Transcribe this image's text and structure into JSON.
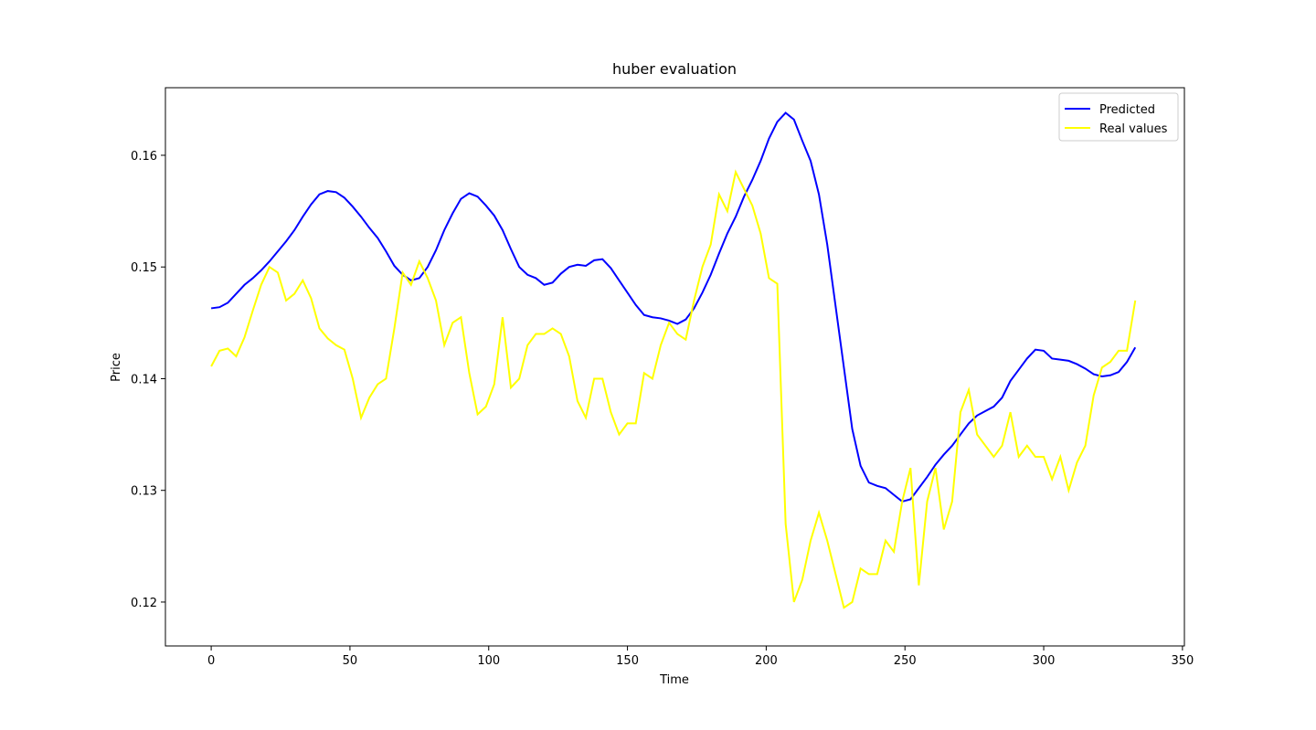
{
  "chart_data": {
    "type": "line",
    "title": "huber evaluation",
    "x_label": "Time",
    "y_label": "Price",
    "x": [
      0,
      3,
      6,
      9,
      12,
      15,
      18,
      21,
      24,
      27,
      30,
      33,
      36,
      39,
      42,
      45,
      48,
      51,
      54,
      57,
      60,
      63,
      66,
      69,
      72,
      75,
      78,
      81,
      84,
      87,
      90,
      93,
      96,
      99,
      102,
      105,
      108,
      111,
      114,
      117,
      120,
      123,
      126,
      129,
      132,
      135,
      138,
      141,
      144,
      147,
      150,
      153,
      156,
      159,
      162,
      165,
      168,
      171,
      174,
      177,
      180,
      183,
      186,
      189,
      192,
      195,
      198,
      201,
      204,
      207,
      210,
      213,
      216,
      219,
      222,
      225,
      228,
      231,
      234,
      237,
      240,
      243,
      246,
      249,
      252,
      255,
      258,
      261,
      264,
      267,
      270,
      273,
      276,
      279,
      282,
      285,
      288,
      291,
      294,
      297,
      300,
      303,
      306,
      309,
      312,
      315,
      318,
      321,
      324,
      327,
      330,
      333
    ],
    "series": [
      {
        "name": "Predicted",
        "color": "#0000ff",
        "values": [
          0.1463,
          0.1464,
          0.1468,
          0.1476,
          0.1484,
          0.149,
          0.1497,
          0.1505,
          0.1514,
          0.1523,
          0.1533,
          0.1545,
          0.1556,
          0.1565,
          0.1568,
          0.1567,
          0.1562,
          0.1554,
          0.1545,
          0.1535,
          0.1526,
          0.1514,
          0.1501,
          0.1493,
          0.1488,
          0.149,
          0.15,
          0.1515,
          0.1533,
          0.1548,
          0.1561,
          0.1566,
          0.1563,
          0.1555,
          0.1546,
          0.1533,
          0.1516,
          0.15,
          0.1493,
          0.149,
          0.1484,
          0.1486,
          0.1494,
          0.15,
          0.1502,
          0.1501,
          0.1506,
          0.1507,
          0.1499,
          0.1488,
          0.1477,
          0.1466,
          0.1457,
          0.1455,
          0.1454,
          0.1452,
          0.1449,
          0.1453,
          0.1463,
          0.1477,
          0.1493,
          0.1512,
          0.153,
          0.1545,
          0.1563,
          0.1578,
          0.1595,
          0.1615,
          0.163,
          0.1638,
          0.1632,
          0.1613,
          0.1595,
          0.1565,
          0.152,
          0.1465,
          0.141,
          0.1355,
          0.1322,
          0.1307,
          0.1304,
          0.1302,
          0.1296,
          0.129,
          0.1292,
          0.1302,
          0.1312,
          0.1323,
          0.1332,
          0.134,
          0.135,
          0.136,
          0.1367,
          0.1371,
          0.1375,
          0.1383,
          0.1398,
          0.1408,
          0.1418,
          0.1426,
          0.1425,
          0.1418,
          0.1417,
          0.1416,
          0.1413,
          0.1409,
          0.1404,
          0.1402,
          0.1403,
          0.1406,
          0.1415,
          0.1428
        ]
      },
      {
        "name": "Real values",
        "color": "#ffff00",
        "values": [
          0.1411,
          0.1425,
          0.1427,
          0.142,
          0.1437,
          0.1461,
          0.1484,
          0.15,
          0.1495,
          0.147,
          0.1476,
          0.1488,
          0.1472,
          0.1445,
          0.1436,
          0.143,
          0.1426,
          0.14,
          0.1365,
          0.1383,
          0.1395,
          0.14,
          0.1445,
          0.1495,
          0.1484,
          0.1505,
          0.149,
          0.147,
          0.143,
          0.145,
          0.1455,
          0.1405,
          0.1368,
          0.1375,
          0.1395,
          0.1455,
          0.1392,
          0.14,
          0.143,
          0.144,
          0.144,
          0.1445,
          0.144,
          0.142,
          0.138,
          0.1365,
          0.14,
          0.14,
          0.137,
          0.135,
          0.136,
          0.136,
          0.1405,
          0.14,
          0.143,
          0.145,
          0.144,
          0.1435,
          0.147,
          0.15,
          0.152,
          0.1565,
          0.155,
          0.1585,
          0.157,
          0.1555,
          0.153,
          0.149,
          0.1485,
          0.127,
          0.12,
          0.122,
          0.1255,
          0.128,
          0.1255,
          0.1225,
          0.1195,
          0.12,
          0.123,
          0.1225,
          0.1225,
          0.1255,
          0.1245,
          0.129,
          0.132,
          0.1215,
          0.129,
          0.132,
          0.1265,
          0.129,
          0.137,
          0.139,
          0.135,
          0.134,
          0.133,
          0.134,
          0.137,
          0.133,
          0.134,
          0.133,
          0.133,
          0.131,
          0.133,
          0.13,
          0.1325,
          0.134,
          0.1385,
          0.141,
          0.1415,
          0.1425,
          0.1425,
          0.147
        ]
      }
    ],
    "xlim": [
      -16.5,
      350.7
    ],
    "ylim": [
      0.11607,
      0.16605
    ],
    "xticks": [
      0,
      50,
      100,
      150,
      200,
      250,
      300,
      350
    ],
    "yticks": [
      0.12,
      0.13,
      0.14,
      0.15,
      0.16
    ],
    "legend": "upper right"
  }
}
